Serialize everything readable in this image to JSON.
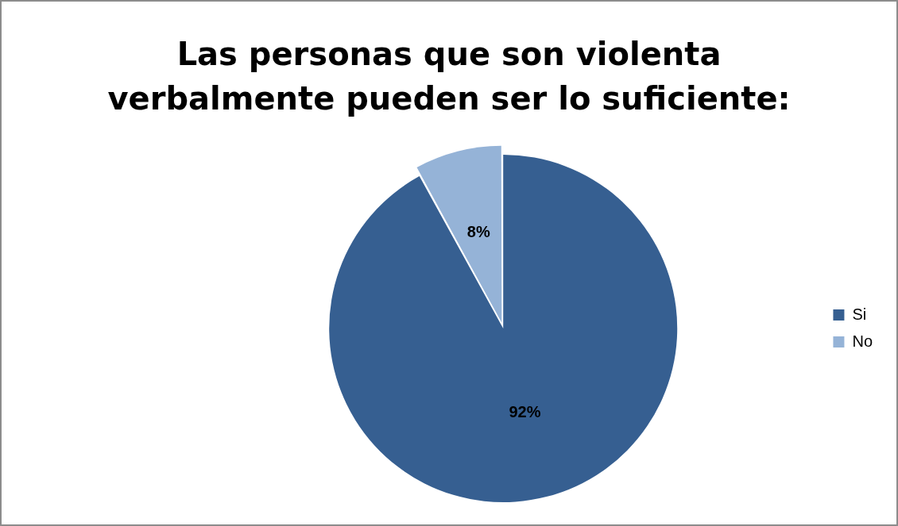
{
  "chart_data": {
    "type": "pie",
    "title": "Las personas que son violenta verbalmente pueden ser lo suficiente:",
    "categories": [
      "Si",
      "No"
    ],
    "values": [
      92,
      8
    ],
    "colors": [
      "#365f91",
      "#95b3d7"
    ],
    "value_labels": [
      "92%",
      "8%"
    ],
    "legend": "right"
  }
}
